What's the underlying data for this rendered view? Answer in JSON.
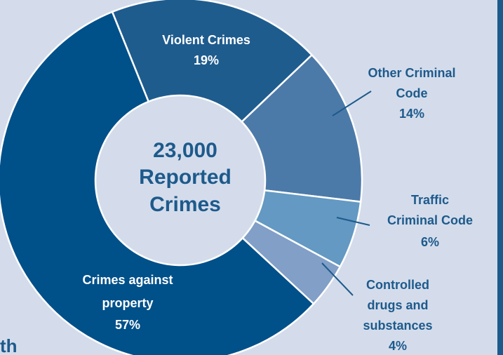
{
  "chart_data": {
    "type": "pie",
    "categories": [
      "Violent Crimes",
      "Other Criminal Code",
      "Traffic Criminal Code",
      "Controlled drugs and substances",
      "Crimes against property"
    ],
    "values": [
      19,
      14,
      6,
      4,
      57
    ],
    "unit": "%",
    "center_text": [
      "23,000",
      "Reported",
      "Crimes"
    ],
    "colors": [
      "#1f5c8e",
      "#4c7aa8",
      "#6399c2",
      "#819fc7",
      "#00508a"
    ],
    "text_colors": [
      "#ffffff",
      "#1d5a8c",
      "#1d5a8c",
      "#1d5a8c",
      "#ffffff"
    ],
    "labels": [
      {
        "lines": [
          "Violent Crimes",
          "19%"
        ]
      },
      {
        "lines": [
          "Other Criminal",
          "Code",
          "14%"
        ]
      },
      {
        "lines": [
          "Traffic",
          "Criminal Code",
          "6%"
        ]
      },
      {
        "lines": [
          "Controlled",
          "drugs and",
          "substances",
          "4%"
        ]
      },
      {
        "lines": [
          "Crimes against",
          "property",
          "57%"
        ]
      }
    ]
  },
  "fragment_text": "th",
  "colors": {
    "background": "#d4dceb",
    "center_fill": "#d4dceb",
    "frame": "#1d5a8c",
    "center_text": "#1d5a8c",
    "leader_line": "#1d5a8c"
  }
}
